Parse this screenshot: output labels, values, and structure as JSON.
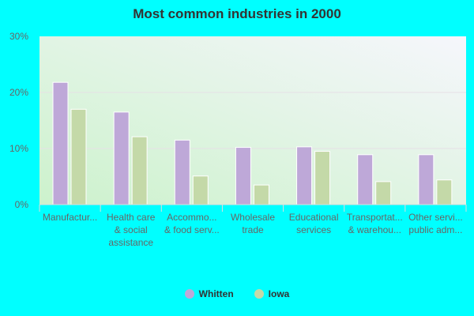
{
  "chart_data": {
    "type": "bar",
    "title": "Most common industries in 2000",
    "categories": [
      [
        "Manufactur..."
      ],
      [
        "Health care",
        "& social",
        "assistance"
      ],
      [
        "Accommo...",
        "& food serv..."
      ],
      [
        "Wholesale",
        "trade"
      ],
      [
        "Educational",
        "services"
      ],
      [
        "Transportat...",
        "& warehou..."
      ],
      [
        "Other servi...",
        "public adm..."
      ]
    ],
    "series": [
      {
        "name": "Whitten",
        "color": "#bea8d8",
        "values": [
          21.8,
          16.5,
          11.5,
          10.2,
          10.3,
          8.9,
          8.9
        ]
      },
      {
        "name": "Iowa",
        "color": "#c4d9a8",
        "values": [
          17.0,
          12.1,
          5.1,
          3.5,
          9.5,
          4.1,
          4.4
        ]
      }
    ],
    "yticks": [
      "0%",
      "10%",
      "20%",
      "30%"
    ],
    "ylim": [
      0,
      30
    ],
    "grid": true,
    "legend": "bottom"
  }
}
